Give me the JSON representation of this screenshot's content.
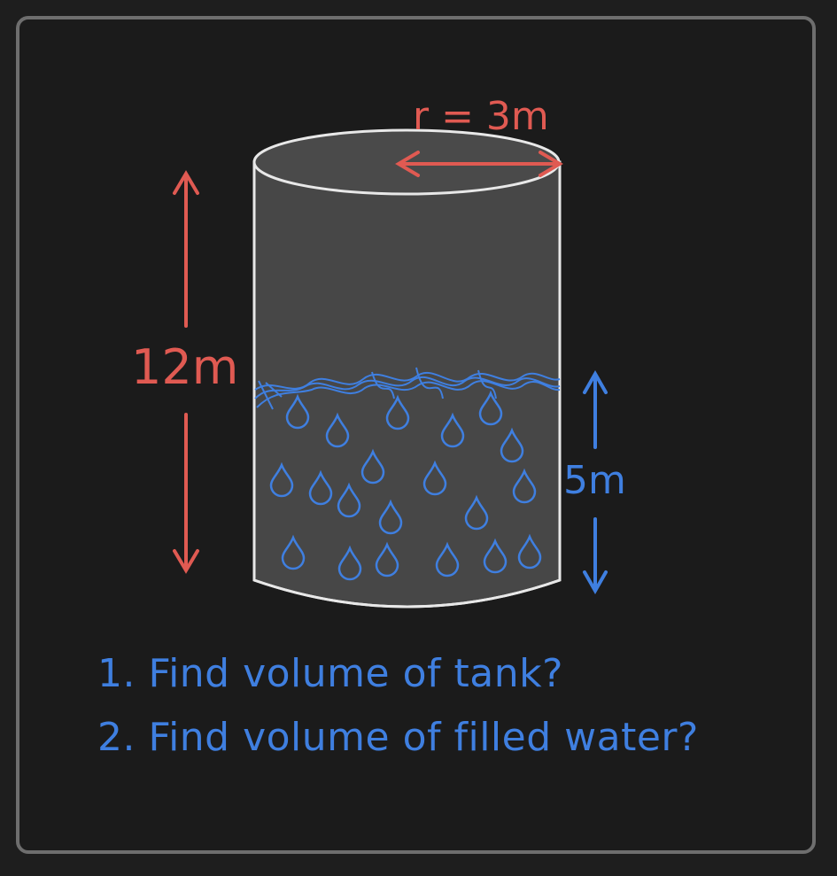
{
  "diagram": {
    "radius_label": "r = 3m",
    "height_label": "12m",
    "water_height_label": "5m"
  },
  "questions": [
    "1. Find volume of tank?",
    "2. Find volume of filled water?"
  ],
  "colors": {
    "background": "#1b1b1b",
    "frame": "#6e6e6e",
    "tank_fill": "#474747",
    "tank_outline": "#e8e8e8",
    "dimension_red": "#e05a52",
    "water_blue": "#3f7fe0"
  }
}
